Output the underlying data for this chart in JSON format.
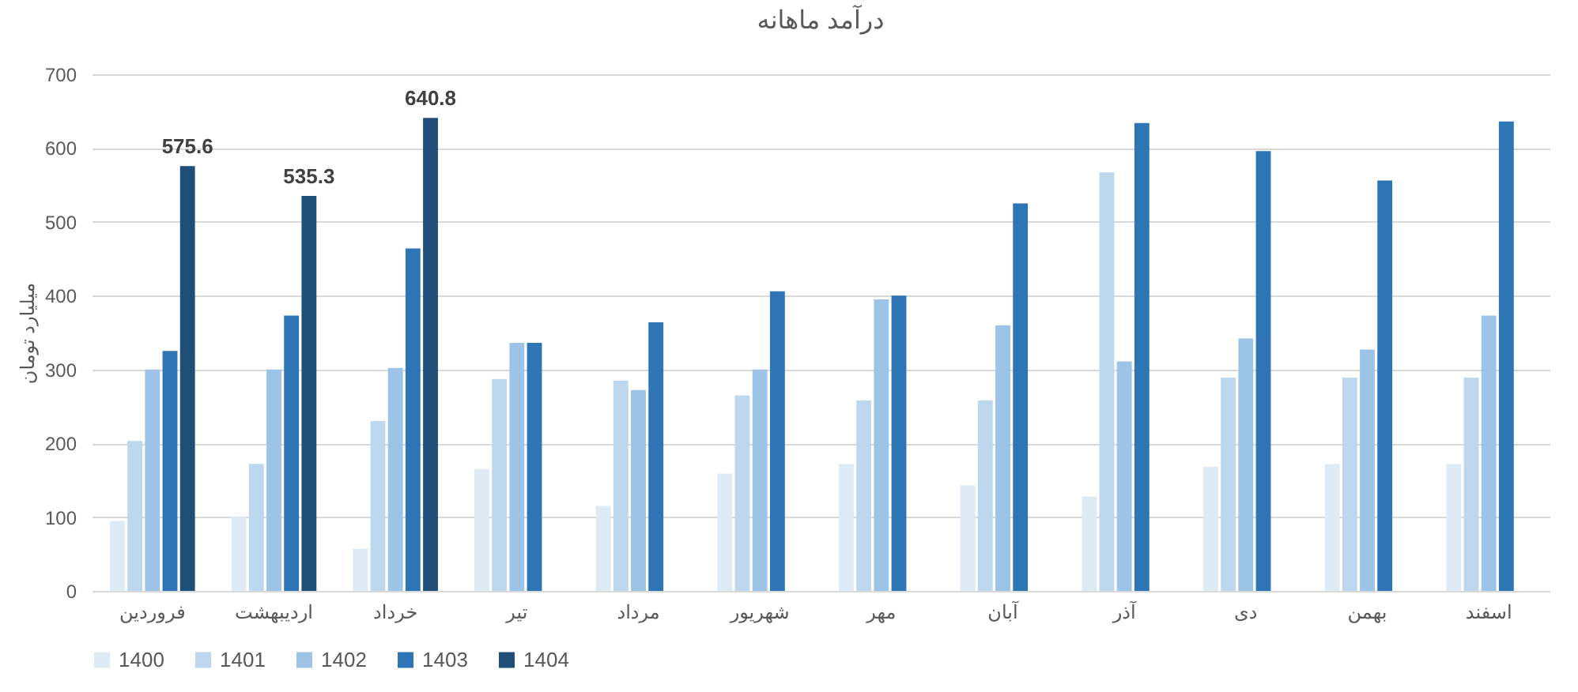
{
  "chart_data": {
    "type": "bar",
    "title": "درآمد ماهانه",
    "ylabel": "میلیارد تومان",
    "categories": [
      "فروردین",
      "اردیبهشت",
      "خرداد",
      "تیر",
      "مرداد",
      "شهریور",
      "مهر",
      "آبان",
      "آذر",
      "دی",
      "بهمن",
      "اسفند"
    ],
    "series": [
      {
        "name": "1400",
        "color": "#deebf7",
        "values": [
          95,
          100,
          57,
          165,
          115,
          159,
          172,
          143,
          128,
          168,
          172,
          172
        ]
      },
      {
        "name": "1401",
        "color": "#bdd7ee",
        "values": [
          203,
          172,
          230,
          287,
          285,
          265,
          258,
          258,
          567,
          289,
          289,
          289
        ]
      },
      {
        "name": "1402",
        "color": "#9dc3e6",
        "values": [
          300,
          300,
          302,
          336,
          272,
          300,
          395,
          360,
          311,
          342,
          327,
          373
        ]
      },
      {
        "name": "1403",
        "color": "#2e75b6",
        "values": [
          325,
          373,
          464,
          336,
          364,
          406,
          400,
          525,
          634,
          596,
          556,
          636
        ]
      },
      {
        "name": "1404",
        "color": "#1f4e79",
        "values": [
          575.6,
          535.3,
          640.8,
          null,
          null,
          null,
          null,
          null,
          null,
          null,
          null,
          null
        ],
        "value_labels": [
          "575.6",
          "535.3",
          "640.8",
          null,
          null,
          null,
          null,
          null,
          null,
          null,
          null,
          null
        ]
      }
    ],
    "ylim": [
      0,
      700
    ],
    "yticks": [
      0,
      100,
      200,
      300,
      400,
      500,
      600,
      700
    ],
    "grid": "y",
    "legend": "bottom"
  }
}
